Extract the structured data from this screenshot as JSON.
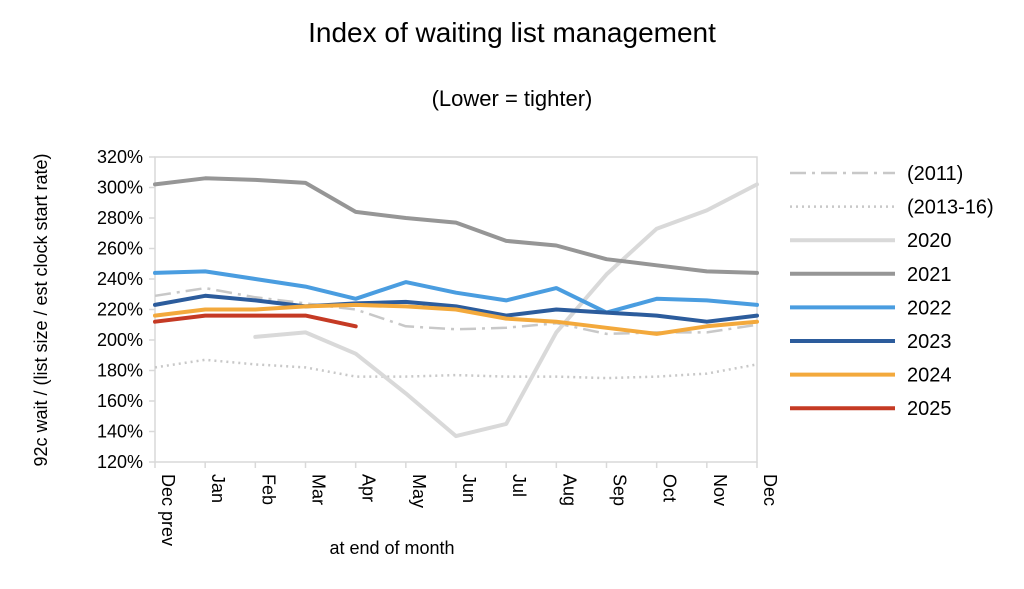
{
  "chart_data": {
    "type": "line",
    "title": "Index of waiting list management",
    "subtitle": "(Lower = tighter)",
    "xlabel": "at end of month",
    "ylabel": "92c wait / (list size / est clock start rate)",
    "categories": [
      "Dec prev",
      "Jan",
      "Feb",
      "Mar",
      "Apr",
      "May",
      "Jun",
      "Jul",
      "Aug",
      "Sep",
      "Oct",
      "Nov",
      "Dec"
    ],
    "ylim": [
      120,
      320
    ],
    "yticks": [
      "120%",
      "140%",
      "160%",
      "180%",
      "200%",
      "220%",
      "240%",
      "260%",
      "280%",
      "300%",
      "320%"
    ],
    "grid": false,
    "legend_position": "right",
    "series": [
      {
        "name": "(2011)",
        "color": "#c8c8c8",
        "style": "dashdot",
        "values": [
          229,
          234,
          228,
          224,
          220,
          209,
          207,
          208,
          211,
          204,
          205,
          205,
          210
        ]
      },
      {
        "name": "(2013-16)",
        "color": "#c8c8c8",
        "style": "dotted",
        "values": [
          182,
          187,
          184,
          182,
          176,
          176,
          177,
          176,
          176,
          175,
          176,
          178,
          184
        ]
      },
      {
        "name": "2020",
        "color": "#d9d9d9",
        "style": "solid",
        "values": [
          null,
          null,
          202,
          205,
          191,
          165,
          137,
          145,
          205,
          243,
          273,
          285,
          302
        ]
      },
      {
        "name": "2021",
        "color": "#969696",
        "style": "solid",
        "values": [
          302,
          306,
          305,
          303,
          284,
          280,
          277,
          265,
          262,
          253,
          249,
          245,
          244
        ]
      },
      {
        "name": "2022",
        "color": "#4a9de0",
        "style": "solid",
        "values": [
          244,
          245,
          240,
          235,
          227,
          238,
          231,
          226,
          234,
          218,
          227,
          226,
          223
        ]
      },
      {
        "name": "2023",
        "color": "#2c5c9c",
        "style": "solid",
        "values": [
          223,
          229,
          226,
          222,
          224,
          225,
          222,
          216,
          220,
          218,
          216,
          212,
          216
        ]
      },
      {
        "name": "2024",
        "color": "#f3a93c",
        "style": "solid",
        "values": [
          216,
          220,
          220,
          222,
          223,
          222,
          220,
          214,
          212,
          208,
          204,
          209,
          212
        ]
      },
      {
        "name": "2025",
        "color": "#c53a24",
        "style": "solid",
        "values": [
          212,
          216,
          216,
          216,
          209,
          null,
          null,
          null,
          null,
          null,
          null,
          null,
          null
        ]
      }
    ]
  }
}
